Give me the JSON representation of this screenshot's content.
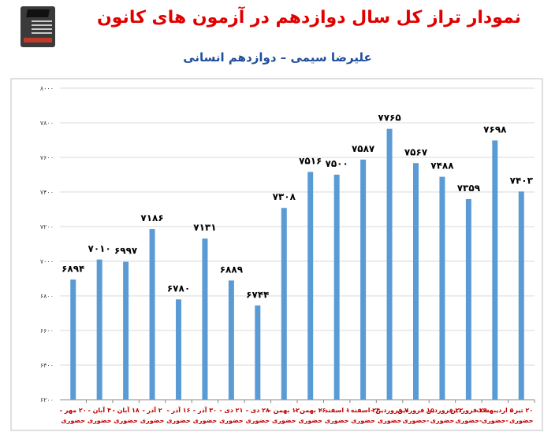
{
  "title": "نمودار تراز کل سال دوازدهم در آزمون های کانون",
  "subtitle": "علیرضا سیمی – دوازدهم انسانی",
  "colors": {
    "bar": "#5b9bd5",
    "title": "#e00000",
    "subtitle": "#1f4e9c",
    "xlabel": "#c00000",
    "grid": "#d9d9d9"
  },
  "chart_data": {
    "type": "bar",
    "ylim": [
      6200,
      8000
    ],
    "yticks": [
      "۶۲۰۰",
      "۶۴۰۰",
      "۶۶۰۰",
      "۶۸۰۰",
      "۷۰۰۰",
      "۷۲۰۰",
      "۷۴۰۰",
      "۷۶۰۰",
      "۷۸۰۰",
      "۸۰۰۰"
    ],
    "ytick_values": [
      6200,
      6400,
      6600,
      6800,
      7000,
      7200,
      7400,
      7600,
      7800,
      8000
    ],
    "grid": "horizontal",
    "categories": [
      [
        "۲۰ مهر -",
        "حضوری"
      ],
      [
        "۴ آبان -",
        "حضوری"
      ],
      [
        "۱۸ آبان -",
        "حضوری"
      ],
      [
        "۲ آذر -",
        "حضوری"
      ],
      [
        "۱۶ آذر -",
        "حضوری"
      ],
      [
        "۳۰ آذر -",
        "حضوری"
      ],
      [
        "۲۱ دی -",
        "حضوری"
      ],
      [
        "۲۸ دی -",
        "حضوری"
      ],
      [
        "۱۲ بهمن -",
        "حضوری"
      ],
      [
        "۲۶ بهمن -",
        "حضوری"
      ],
      [
        "۱۰ اسفند -",
        "حضوری"
      ],
      [
        "۲۴ اسفند -",
        "حضوری"
      ],
      [
        "۷ فروردین -",
        "حضوری"
      ],
      [
        "۱۵ فروردین",
        "-حضوری"
      ],
      [
        "۲۲ فروردین -",
        "حضوری"
      ],
      [
        "۲۹ فروردین",
        "-حضوری"
      ],
      [
        "۵ اردیبهشت",
        "-حضوری"
      ],
      [
        "۲۰ تیر -",
        "حضوری"
      ]
    ],
    "values": [
      6894,
      7010,
      6997,
      7186,
      6780,
      7131,
      6889,
      6744,
      7308,
      7516,
      7500,
      7587,
      7765,
      7567,
      7488,
      7359,
      7698,
      7403
    ],
    "value_labels": [
      "۶۸۹۴",
      "۷۰۱۰",
      "۶۹۹۷",
      "۷۱۸۶",
      "۶۷۸۰",
      "۷۱۳۱",
      "۶۸۸۹",
      "۶۷۴۴",
      "۷۳۰۸",
      "۷۵۱۶",
      "۷۵۰۰",
      "۷۵۸۷",
      "۷۷۶۵",
      "۷۵۶۷",
      "۷۴۸۸",
      "۷۳۵۹",
      "۷۶۹۸",
      "۷۴۰۳"
    ]
  }
}
